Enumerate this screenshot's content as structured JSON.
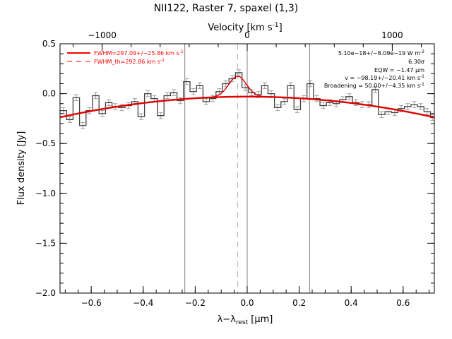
{
  "chart_data": {
    "type": "line",
    "title": "NII122, Raster 7, spaxel (1,3)",
    "xlabel_main": "λ−λ",
    "xlabel_sub": "rest",
    "xlabel_unit": " [μm]",
    "ylabel": "Flux density [Jy]",
    "toplabel": "Velocity [km s",
    "toplabel_sup": "-1",
    "toplabel_end": "]",
    "xlim": [
      -0.72,
      0.72
    ],
    "ylim": [
      -2.0,
      0.5
    ],
    "top_vel_range": [
      -1290,
      1290
    ],
    "x_ticks": [
      -0.6,
      -0.4,
      -0.2,
      0.0,
      0.2,
      0.4,
      0.6
    ],
    "x_tick_labels": [
      "−0.6",
      "−0.4",
      "−0.2",
      "0.0",
      "0.2",
      "0.4",
      "0.6"
    ],
    "y_ticks": [
      -2.0,
      -1.5,
      -1.0,
      -0.5,
      0.0,
      0.5
    ],
    "y_tick_labels": [
      "−2.0",
      "−1.5",
      "−1.0",
      "−0.5",
      "0.0",
      "0.5"
    ],
    "top_ticks": [
      -1000,
      0,
      1000
    ],
    "top_tick_labels": [
      "−1000",
      "0",
      "1000"
    ],
    "vlines_solid": [
      -0.24,
      0.0,
      0.24
    ],
    "vline_dashed": -0.037,
    "legend": [
      {
        "label": "FWHM=297.09+/−25.86 km s",
        "sup": "-1",
        "style": "solid",
        "color": "#ff0000"
      },
      {
        "label": "FWHM_th=292.86 km s",
        "sup": "-1",
        "style": "dashed",
        "color": "#ff0000"
      }
    ],
    "annotations": [
      {
        "text": "5.10e−18+/−8.09e−19 W m",
        "sup": "-2"
      },
      {
        "text": "6.30σ",
        "sup": ""
      },
      {
        "text": "EQW = −1.47 μm",
        "sup": ""
      },
      {
        "text": "v = −98.19+/−20.41 km s",
        "sup": "-1"
      },
      {
        "text": "Broadening = 50.00+/−4.35 km s",
        "sup": "-1"
      }
    ],
    "spectrum_x": [
      -0.72,
      -0.695,
      -0.67,
      -0.645,
      -0.62,
      -0.595,
      -0.57,
      -0.545,
      -0.52,
      -0.495,
      -0.47,
      -0.445,
      -0.42,
      -0.395,
      -0.37,
      -0.345,
      -0.32,
      -0.295,
      -0.27,
      -0.245,
      -0.22,
      -0.195,
      -0.17,
      -0.145,
      -0.12,
      -0.095,
      -0.07,
      -0.045,
      -0.02,
      0.005,
      0.03,
      0.055,
      0.08,
      0.105,
      0.13,
      0.155,
      0.18,
      0.205,
      0.23,
      0.255,
      0.28,
      0.305,
      0.33,
      0.355,
      0.38,
      0.405,
      0.43,
      0.455,
      0.48,
      0.505,
      0.53,
      0.555,
      0.58,
      0.605,
      0.63,
      0.655,
      0.68,
      0.705
    ],
    "spectrum_y": [
      -0.17,
      -0.26,
      -0.04,
      -0.32,
      -0.17,
      -0.02,
      -0.2,
      -0.09,
      -0.13,
      -0.14,
      -0.12,
      -0.08,
      -0.23,
      0.0,
      -0.05,
      -0.22,
      -0.02,
      0.01,
      -0.07,
      0.12,
      0.02,
      0.08,
      -0.08,
      -0.05,
      0.02,
      0.1,
      0.15,
      0.21,
      0.06,
      0.01,
      -0.01,
      0.08,
      0.0,
      -0.14,
      -0.08,
      0.08,
      -0.16,
      -0.05,
      0.1,
      -0.05,
      -0.12,
      -0.09,
      -0.1,
      -0.06,
      -0.03,
      -0.09,
      -0.11,
      -0.11,
      0.04,
      -0.21,
      -0.18,
      -0.19,
      -0.15,
      -0.13,
      -0.11,
      -0.13,
      -0.18,
      -0.24
    ],
    "error_bar": 0.03,
    "model": {
      "c0": -0.03,
      "c2": -0.4,
      "amp": 0.205,
      "center": -0.037,
      "sigma": 0.034
    },
    "colors": {
      "data": "#404040",
      "error": "#a0a0a0",
      "model": "#e00000",
      "vline": "#808080"
    }
  }
}
